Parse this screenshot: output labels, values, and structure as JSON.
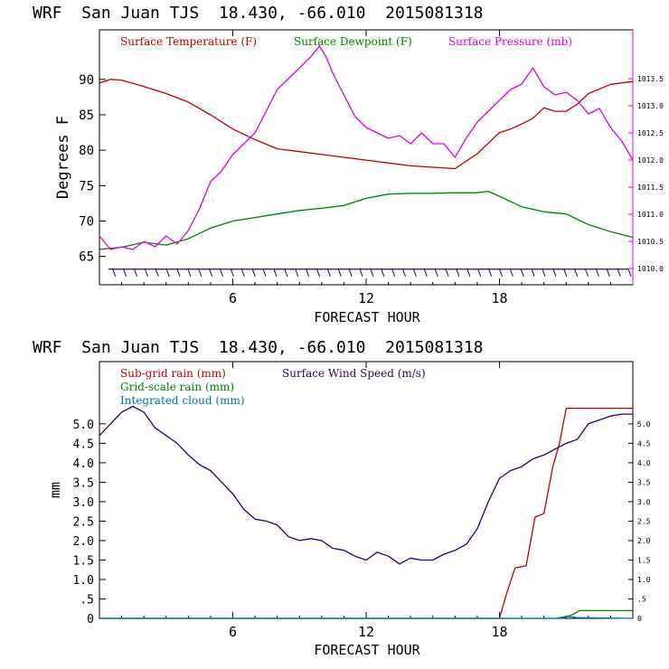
{
  "chart_data": [
    {
      "type": "line",
      "title": "WRF  San Juan TJS  18.430, -66.010  2015081318",
      "xlabel": "FORECAST HOUR",
      "ylabel": "Degrees F",
      "xlim": [
        0,
        24
      ],
      "ylim": [
        61,
        97
      ],
      "y2lim": [
        1009.7,
        1014.4
      ],
      "x_ticks": [
        6,
        12,
        18
      ],
      "x_tick_labels": [
        "6",
        "12",
        "18"
      ],
      "y_ticks": [
        65,
        70,
        75,
        80,
        85,
        90
      ],
      "y_tick_labels": [
        "65",
        "70",
        "75",
        "80",
        "85",
        "90"
      ],
      "y2_ticks": [
        1010.0,
        1010.5,
        1011.0,
        1011.5,
        1012.0,
        1012.5,
        1013.0,
        1013.5
      ],
      "y2_tick_labels": [
        "1010.0",
        "1010.5",
        "1011.0",
        "1011.5",
        "1012.0",
        "1012.5",
        "1013.0",
        "1013.5"
      ],
      "legend_placement": "top",
      "series": [
        {
          "name": "Surface Temperature (F)",
          "color": "#c00000",
          "axis": "left",
          "x": [
            0,
            0.5,
            1,
            2,
            3,
            4,
            5,
            6,
            7,
            8,
            9,
            10,
            11,
            12,
            13,
            14,
            15,
            16,
            17,
            17.5,
            18,
            18.5,
            19,
            19.5,
            20,
            20.5,
            21,
            21.5,
            22,
            23,
            24
          ],
          "values": [
            89.5,
            90,
            89.9,
            89,
            88,
            86.8,
            85,
            83,
            81.5,
            80.2,
            79.8,
            79.4,
            79,
            78.6,
            78.2,
            77.8,
            77.6,
            77.4,
            79.5,
            81,
            82.5,
            83,
            83.7,
            84.5,
            86,
            85.5,
            85.5,
            86.5,
            88,
            89.3,
            89.7
          ]
        },
        {
          "name": "Surface Dewpoint (F)",
          "color": "#008000",
          "axis": "left",
          "x": [
            0,
            1,
            2,
            3,
            4,
            5,
            6,
            7,
            8,
            9,
            10,
            11,
            12,
            13,
            14,
            15,
            16,
            17,
            17.5,
            18,
            19,
            20,
            21,
            22,
            23,
            24
          ],
          "values": [
            66,
            66.3,
            67,
            66.6,
            67.5,
            69,
            70,
            70.5,
            71,
            71.5,
            71.8,
            72.2,
            73.2,
            73.8,
            73.9,
            73.9,
            74,
            74,
            74.2,
            73.5,
            72,
            71.3,
            71,
            69.5,
            68.5,
            67.7
          ]
        },
        {
          "name": "Surface Pressure (mb)",
          "color": "#e000e0",
          "axis": "right",
          "x": [
            0,
            0.5,
            1,
            1.5,
            2,
            2.5,
            3,
            3.5,
            4,
            4.5,
            5,
            5.5,
            6,
            6.5,
            7,
            7.5,
            8,
            8.5,
            9,
            9.5,
            9.9,
            10.2,
            10.5,
            11,
            11.5,
            12,
            12.5,
            13,
            13.5,
            14,
            14.5,
            15,
            15.5,
            16,
            16.5,
            17,
            17.5,
            18,
            18.5,
            19,
            19.5,
            20,
            20.5,
            21,
            21.5,
            22,
            22.5,
            23,
            23.5,
            24
          ],
          "values": [
            1010.6,
            1010.35,
            1010.4,
            1010.35,
            1010.5,
            1010.4,
            1010.6,
            1010.45,
            1010.7,
            1011.1,
            1011.6,
            1011.8,
            1012.1,
            1012.3,
            1012.5,
            1012.9,
            1013.3,
            1013.5,
            1013.7,
            1013.9,
            1014.1,
            1013.9,
            1013.6,
            1013.2,
            1012.8,
            1012.6,
            1012.5,
            1012.4,
            1012.45,
            1012.3,
            1012.5,
            1012.3,
            1012.3,
            1012.05,
            1012.4,
            1012.7,
            1012.9,
            1013.1,
            1013.3,
            1013.4,
            1013.7,
            1013.35,
            1013.2,
            1013.25,
            1013.1,
            1012.85,
            1012.95,
            1012.6,
            1012.35,
            1012.0
          ]
        }
      ],
      "wind_barbs": {
        "level": 63.2,
        "count": 49,
        "color": "#300060"
      }
    },
    {
      "type": "line",
      "title": "WRF  San Juan TJS  18.430, -66.010  2015081318",
      "xlabel": "FORECAST HOUR",
      "ylabel": "mm",
      "xlim": [
        0,
        24
      ],
      "ylim": [
        0,
        6.6
      ],
      "x_ticks": [
        6,
        12,
        18
      ],
      "x_tick_labels": [
        "6",
        "12",
        "18"
      ],
      "y_ticks": [
        0,
        0.5,
        1.0,
        1.5,
        2.0,
        2.5,
        3.0,
        3.5,
        4.0,
        4.5,
        5.0
      ],
      "y_tick_labels": [
        "0",
        ".5",
        "1.0",
        "1.5",
        "2.0",
        "2.5",
        "3.0",
        "3.5",
        "4.0",
        "4.5",
        "5.0"
      ],
      "y2_tick_labels": [
        "0",
        ".5",
        "1.0",
        "1.5",
        "2.0",
        "2.5",
        "3.0",
        "3.5",
        "4.0",
        "4.5",
        "5.0"
      ],
      "legend_placement": "top-left",
      "series": [
        {
          "name": "Sub-grid rain (mm)",
          "color": "#c00000",
          "axis": "left",
          "x": [
            0,
            18,
            18.3,
            18.7,
            19.2,
            19.6,
            20,
            20.4,
            20.7,
            21,
            24
          ],
          "values": [
            0,
            0,
            0.6,
            1.3,
            1.35,
            2.6,
            2.7,
            3.9,
            4.5,
            5.4,
            5.4
          ]
        },
        {
          "name": "Grid-scale rain (mm)",
          "color": "#008000",
          "axis": "left",
          "x": [
            0,
            20.8,
            21.3,
            21.6,
            24
          ],
          "values": [
            0,
            0,
            0.1,
            0.2,
            0.2
          ]
        },
        {
          "name": "Integrated cloud (mm)",
          "color": "#0070c0",
          "axis": "left",
          "x": [
            0,
            20.5,
            21,
            21.5,
            24
          ],
          "values": [
            0,
            0,
            0.05,
            0.02,
            0
          ]
        },
        {
          "name": "Surface Wind Speed (m/s)",
          "color": "#300060",
          "axis": "right",
          "x": [
            0,
            0.5,
            1,
            1.5,
            2,
            2.5,
            3,
            3.5,
            4,
            4.5,
            5,
            5.5,
            6,
            6.5,
            7,
            7.5,
            8,
            8.5,
            9,
            9.5,
            10,
            10.5,
            11,
            11.5,
            12,
            12.5,
            13,
            13.5,
            14,
            14.5,
            15,
            15.5,
            16,
            16.5,
            17,
            17.5,
            18,
            18.5,
            19,
            19.5,
            20,
            20.5,
            21,
            21.5,
            22,
            22.5,
            23,
            23.5,
            24
          ],
          "values": [
            4.7,
            5.0,
            5.3,
            5.45,
            5.3,
            4.9,
            4.7,
            4.5,
            4.2,
            3.95,
            3.8,
            3.5,
            3.2,
            2.8,
            2.55,
            2.5,
            2.4,
            2.1,
            2.0,
            2.05,
            2.0,
            1.8,
            1.75,
            1.6,
            1.5,
            1.7,
            1.6,
            1.4,
            1.55,
            1.5,
            1.5,
            1.65,
            1.75,
            1.9,
            2.3,
            3.0,
            3.6,
            3.8,
            3.9,
            4.1,
            4.2,
            4.35,
            4.5,
            4.6,
            5.0,
            5.1,
            5.2,
            5.25,
            5.25
          ]
        }
      ]
    }
  ]
}
